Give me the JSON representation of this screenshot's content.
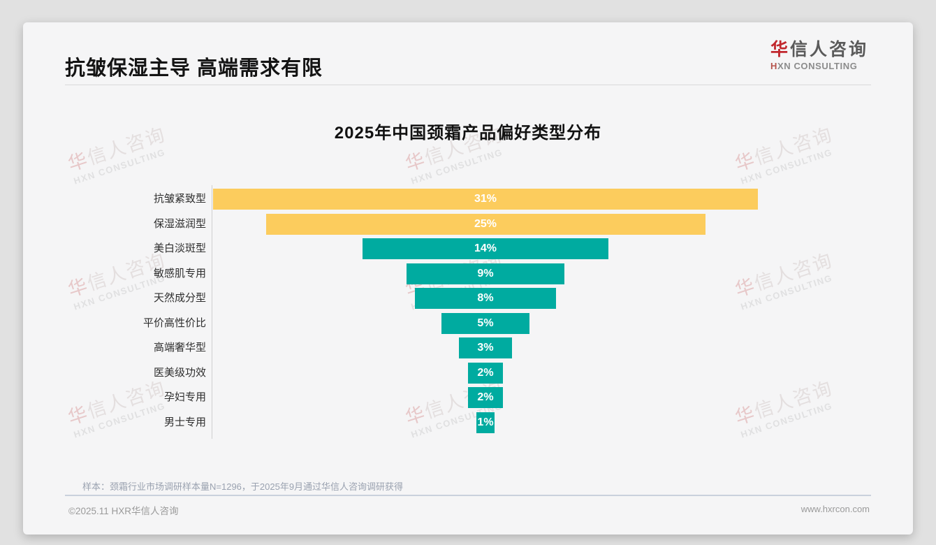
{
  "header": {
    "title": "抗皱保湿主导 高端需求有限",
    "logo": {
      "cn_first": "华",
      "cn_rest": "信人咨询",
      "en_first": "H",
      "en_rest": "XN CONSULTING"
    }
  },
  "chart_data": {
    "type": "bar",
    "orientation": "horizontal_centered_funnel",
    "title": "2025年中国颈霜产品偏好类型分布",
    "categories": [
      "抗皱紧致型",
      "保湿滋润型",
      "美白淡斑型",
      "敏感肌专用",
      "天然成分型",
      "平价高性价比",
      "高端奢华型",
      "医美级功效",
      "孕妇专用",
      "男士专用"
    ],
    "values": [
      31,
      25,
      14,
      9,
      8,
      5,
      3,
      2,
      2,
      1
    ],
    "value_labels": [
      "31%",
      "25%",
      "14%",
      "9%",
      "8%",
      "5%",
      "3%",
      "2%",
      "2%",
      "1%"
    ],
    "unit": "%",
    "colors": [
      "#FCCC5D",
      "#FCCC5D",
      "#00ABA0",
      "#00ABA0",
      "#00ABA0",
      "#00ABA0",
      "#00ABA0",
      "#00ABA0",
      "#00ABA0",
      "#00ABA0"
    ],
    "highlight_color": "#FCCC5D",
    "base_color": "#00ABA0",
    "grid": false,
    "x_axis_ticks": [],
    "legend": "none",
    "layout_note": "bars centered on common vertical midline, widths proportional to values"
  },
  "footnote": "样本：颈霜行业市场调研样本量N=1296，于2025年9月通过华信人咨询调研获得",
  "footer": {
    "left": "©2025.11 HXR华信人咨询",
    "right": "www.hxrcon.com"
  },
  "watermark": {
    "line1_first": "华",
    "line1_rest": "信人咨询",
    "line2": "HXN CONSULTING"
  }
}
